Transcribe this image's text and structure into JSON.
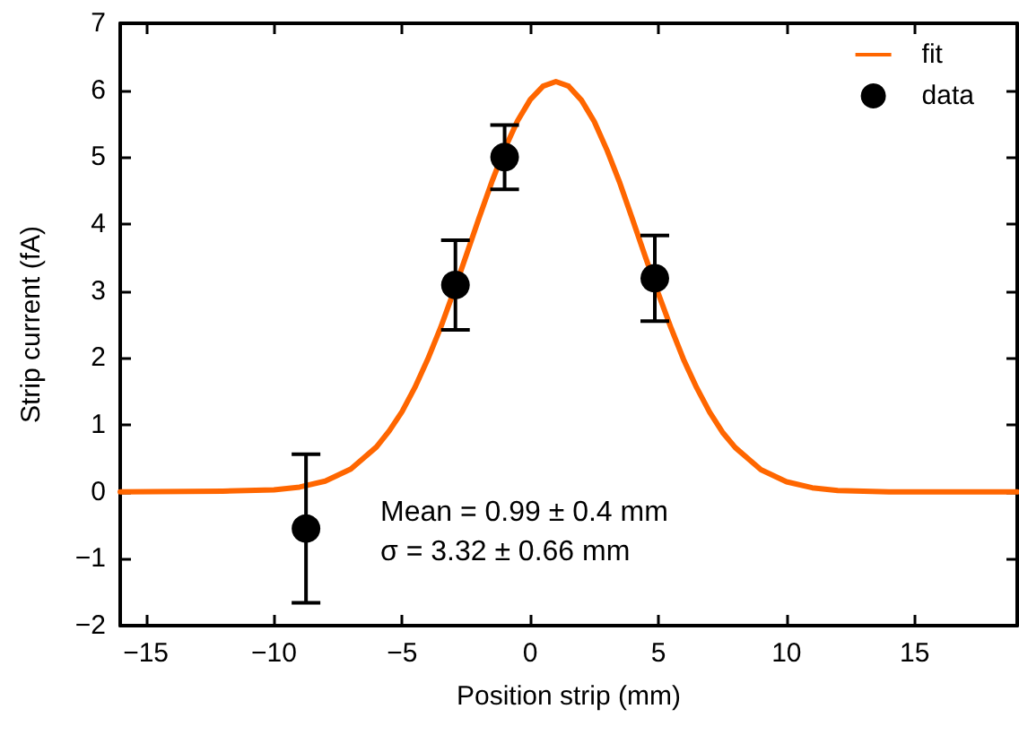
{
  "chart_data": {
    "type": "scatter",
    "xlabel": "Position strip (mm)",
    "ylabel": "Strip current (fA)",
    "xlim": [
      -16,
      19
    ],
    "xticks": [
      -15,
      -10,
      -5,
      0,
      5,
      10,
      15
    ],
    "ylim": [
      -2,
      7
    ],
    "yticks": [
      -2,
      -1,
      0,
      1,
      2,
      3,
      4,
      5,
      6,
      7
    ],
    "grid": false,
    "legend": "top right",
    "annotations": [
      "Mean = 0.99 ± 0.4 mm",
      "σ = 3.32 ± 0.66 mm"
    ],
    "series": [
      {
        "name": "fit",
        "type": "line",
        "color": "#ff6600",
        "marker": "none",
        "line_style": "solid",
        "x": [
          -16,
          -12,
          -10,
          -9,
          -8,
          -7,
          -6,
          -5.5,
          -5,
          -4.5,
          -4,
          -3.5,
          -3,
          -2.5,
          -2,
          -1.5,
          -1,
          -0.5,
          0,
          0.5,
          1,
          1.5,
          2,
          2.5,
          3,
          3.5,
          4,
          4.5,
          5,
          5.5,
          6,
          6.5,
          7,
          7.5,
          8,
          9,
          10,
          11,
          12,
          14,
          19
        ],
        "values": [
          0,
          0.01,
          0.03,
          0.07,
          0.16,
          0.34,
          0.67,
          0.91,
          1.2,
          1.56,
          1.98,
          2.45,
          2.98,
          3.53,
          4.09,
          4.63,
          5.12,
          5.54,
          5.86,
          6.06,
          6.13,
          6.06,
          5.85,
          5.53,
          5.1,
          4.61,
          4.06,
          3.5,
          2.96,
          2.44,
          1.96,
          1.55,
          1.19,
          0.89,
          0.66,
          0.33,
          0.15,
          0.06,
          0.02,
          0,
          0
        ]
      },
      {
        "name": "data",
        "color": "#000000",
        "marker": "circle",
        "x": [
          -8.75,
          -2.92,
          -1.0,
          4.86
        ],
        "values": [
          -0.55,
          3.09,
          5.0,
          3.19
        ],
        "errors": [
          1.11,
          0.67,
          0.48,
          0.64
        ]
      }
    ]
  }
}
